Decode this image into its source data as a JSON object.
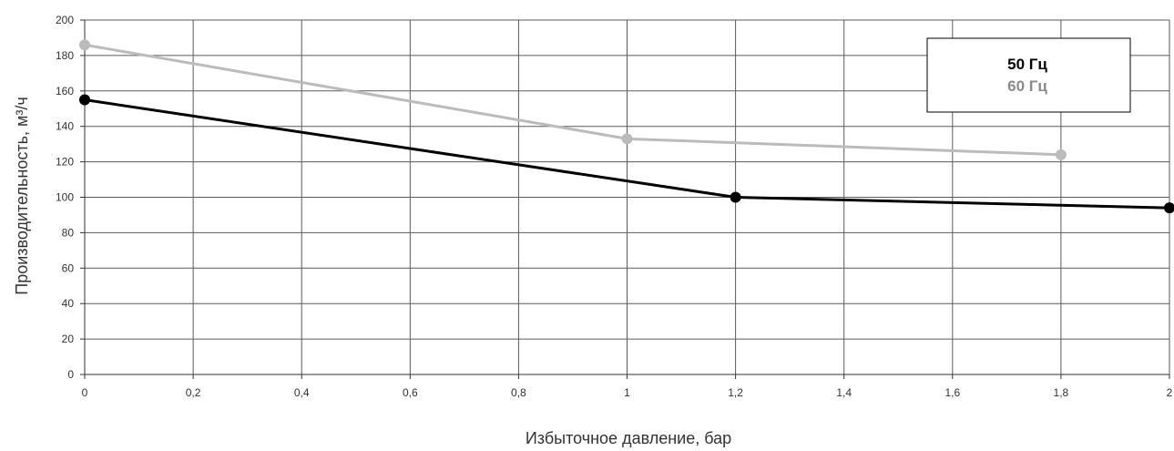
{
  "chart_data": {
    "type": "line",
    "title": "",
    "xlabel": "Избыточное давление, бар",
    "ylabel": "Производительность, м³/ч",
    "xlim": [
      0,
      2
    ],
    "ylim": [
      0,
      200
    ],
    "x_ticks": [
      0,
      0.2,
      0.4,
      0.6,
      0.8,
      1,
      1.2,
      1.4,
      1.6,
      1.8,
      2
    ],
    "x_tick_labels": [
      "0",
      "0,2",
      "0,4",
      "0,6",
      "0,8",
      "1",
      "1,2",
      "1,4",
      "1,6",
      "1,8",
      "2"
    ],
    "y_ticks": [
      0,
      20,
      40,
      60,
      80,
      100,
      120,
      140,
      160,
      180,
      200
    ],
    "y_tick_labels": [
      "0",
      "20",
      "40",
      "60",
      "80",
      "100",
      "120",
      "140",
      "160",
      "180",
      "200"
    ],
    "grid": true,
    "legend_position": "top-right",
    "series": [
      {
        "name": "50 Гц",
        "color": "#000000",
        "x": [
          0,
          1.2,
          2
        ],
        "y": [
          155,
          100,
          94
        ]
      },
      {
        "name": "60 Гц",
        "color": "#bbbbbb",
        "x": [
          0,
          1,
          1.8
        ],
        "y": [
          186,
          133,
          124
        ]
      }
    ]
  },
  "colors": {
    "legend_60_text": "#8a8a8a",
    "grid": "#5a5a5a",
    "axis": "#333333"
  }
}
